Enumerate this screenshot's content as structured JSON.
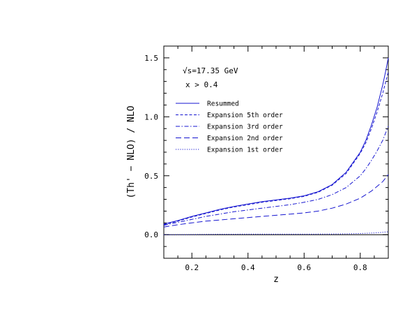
{
  "chart_data": {
    "type": "line",
    "title": "",
    "xlabel": "z",
    "ylabel": "(Th' − NLO) / NLO",
    "xlim": [
      0.1,
      0.9
    ],
    "ylim": [
      -0.2,
      1.6
    ],
    "xticks": [
      0.2,
      0.4,
      0.6,
      0.8
    ],
    "xtick_labels": [
      "0.2",
      "0.4",
      "0.6",
      "0.8"
    ],
    "yticks": [
      0.0,
      0.5,
      1.0,
      1.5
    ],
    "ytick_labels": [
      "0.0",
      "0.5",
      "1.0",
      "1.5"
    ],
    "grid": false,
    "zero_line": 0,
    "annotations": [
      "√s=17.35 GeV",
      "x > 0.4"
    ],
    "legend_position": "top-left",
    "series": [
      {
        "name": "Resummed",
        "style": "solid",
        "color": "#1515d0",
        "x": [
          0.1,
          0.15,
          0.2,
          0.25,
          0.3,
          0.35,
          0.4,
          0.45,
          0.5,
          0.55,
          0.6,
          0.65,
          0.7,
          0.75,
          0.8,
          0.82,
          0.84,
          0.86,
          0.88,
          0.89,
          0.9
        ],
        "y": [
          0.09,
          0.12,
          0.155,
          0.185,
          0.215,
          0.24,
          0.26,
          0.28,
          0.295,
          0.31,
          0.33,
          0.365,
          0.425,
          0.53,
          0.7,
          0.8,
          0.93,
          1.08,
          1.27,
          1.38,
          1.5
        ]
      },
      {
        "name": "Expansion 5th order",
        "style": "short-dash",
        "color": "#1515d0",
        "x": [
          0.1,
          0.15,
          0.2,
          0.25,
          0.3,
          0.35,
          0.4,
          0.45,
          0.5,
          0.55,
          0.6,
          0.65,
          0.7,
          0.75,
          0.8,
          0.82,
          0.84,
          0.86,
          0.88,
          0.89,
          0.9
        ],
        "y": [
          0.085,
          0.115,
          0.15,
          0.18,
          0.21,
          0.235,
          0.255,
          0.275,
          0.29,
          0.305,
          0.325,
          0.36,
          0.42,
          0.52,
          0.69,
          0.78,
          0.9,
          1.04,
          1.2,
          1.29,
          1.38
        ]
      },
      {
        "name": "Expansion 3rd order",
        "style": "dash-dot",
        "color": "#1515d0",
        "x": [
          0.1,
          0.15,
          0.2,
          0.25,
          0.3,
          0.35,
          0.4,
          0.45,
          0.5,
          0.55,
          0.6,
          0.65,
          0.7,
          0.75,
          0.8,
          0.82,
          0.84,
          0.86,
          0.88,
          0.89,
          0.9
        ],
        "y": [
          0.08,
          0.105,
          0.13,
          0.155,
          0.175,
          0.195,
          0.21,
          0.225,
          0.24,
          0.255,
          0.275,
          0.3,
          0.34,
          0.4,
          0.5,
          0.56,
          0.63,
          0.71,
          0.8,
          0.86,
          0.92
        ]
      },
      {
        "name": "Expansion 2nd order",
        "style": "long-dash",
        "color": "#1515d0",
        "x": [
          0.1,
          0.15,
          0.2,
          0.25,
          0.3,
          0.35,
          0.4,
          0.45,
          0.5,
          0.55,
          0.6,
          0.65,
          0.7,
          0.75,
          0.8,
          0.82,
          0.84,
          0.86,
          0.88,
          0.89,
          0.9
        ],
        "y": [
          0.065,
          0.085,
          0.1,
          0.115,
          0.125,
          0.135,
          0.145,
          0.155,
          0.165,
          0.175,
          0.185,
          0.2,
          0.225,
          0.26,
          0.31,
          0.34,
          0.37,
          0.41,
          0.45,
          0.48,
          0.51
        ]
      },
      {
        "name": "Expansion 1st order",
        "style": "dotted",
        "color": "#1515d0",
        "x": [
          0.1,
          0.2,
          0.3,
          0.4,
          0.5,
          0.6,
          0.7,
          0.75,
          0.8,
          0.85,
          0.88,
          0.9
        ],
        "y": [
          0.0,
          0.002,
          0.004,
          0.005,
          0.005,
          0.005,
          0.006,
          0.007,
          0.01,
          0.015,
          0.02,
          0.025
        ]
      }
    ]
  }
}
